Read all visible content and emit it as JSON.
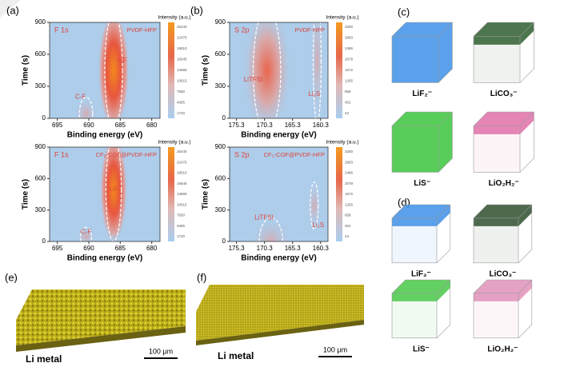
{
  "panels": {
    "a": {
      "label": "(a)",
      "plots": [
        {
          "tag": "F 1s",
          "sample": "PVDF-HFP",
          "peaks": [
            "C-F",
            "LiF"
          ],
          "xlabel": "Binding energy (eV)",
          "ylabel": "Time (s)",
          "xticks": [
            "695",
            "690",
            "685",
            "680"
          ],
          "yticks": [
            "0",
            "300",
            "600",
            "900"
          ],
          "cbar_title": "Intensity (a.u.)",
          "cbar_ticks": [
            "25440",
            "22475",
            "19510",
            "16545",
            "13580",
            "10615",
            "7650",
            "4685",
            "1720"
          ]
        },
        {
          "tag": "F 1s",
          "sample": "CF₂-COF@PVDF-HFP",
          "peaks": [
            "C-F",
            "LiF"
          ],
          "xlabel": "Binding energy (eV)",
          "ylabel": "Time (s)",
          "xticks": [
            "695",
            "690",
            "685",
            "680"
          ],
          "yticks": [
            "0",
            "300",
            "600",
            "900"
          ],
          "cbar_title": "Intensity (a.u.)",
          "cbar_ticks": [
            "25440",
            "22475",
            "19510",
            "16545",
            "13580",
            "10615",
            "7650",
            "4685",
            "1720"
          ]
        }
      ]
    },
    "b": {
      "label": "(b)",
      "plots": [
        {
          "tag": "S 2p",
          "sample": "PVDF-HFP",
          "peaks": [
            "LiTFSI",
            "Li₂S"
          ],
          "xlabel": "Binding energy (eV)",
          "ylabel": "Time (s)",
          "xticks": [
            "175.3",
            "170.3",
            "165.3",
            "160.3"
          ],
          "yticks": [
            "0",
            "300",
            "600",
            "900"
          ],
          "cbar_title": "Intensity (a.u.)",
          "cbar_ticks": [
            "3300",
            "2893",
            "2486",
            "2079",
            "1672",
            "1265",
            "858",
            "451",
            "44"
          ]
        },
        {
          "tag": "S 2p",
          "sample": "CF₂-COF@PVDF-HFP",
          "peaks": [
            "LiTFSI",
            "Li₂S"
          ],
          "xlabel": "Binding energy (eV)",
          "ylabel": "Time (s)",
          "xticks": [
            "175.3",
            "170.3",
            "165.3",
            "160.3"
          ],
          "yticks": [
            "0",
            "300",
            "600",
            "900"
          ],
          "cbar_title": "Intensity (a.u.)",
          "cbar_ticks": [
            "3300",
            "2893",
            "2486",
            "2079",
            "1672",
            "1265",
            "858",
            "451",
            "44"
          ]
        }
      ]
    },
    "c": {
      "label": "(c)",
      "cubes": [
        "LiF₂⁻",
        "LiCO₃⁻",
        "LiS⁻",
        "LiO₂H₂⁻"
      ]
    },
    "d": {
      "label": "(d)",
      "cubes": [
        "LiF₂⁻",
        "LiCO₃⁻",
        "LiS⁻",
        "LiO₂H₂⁻"
      ]
    },
    "e": {
      "label": "(e)",
      "caption": "Li metal",
      "scale": "100 μm"
    },
    "f": {
      "label": "(f)",
      "caption": "Li metal",
      "scale": "100 μm"
    }
  }
}
